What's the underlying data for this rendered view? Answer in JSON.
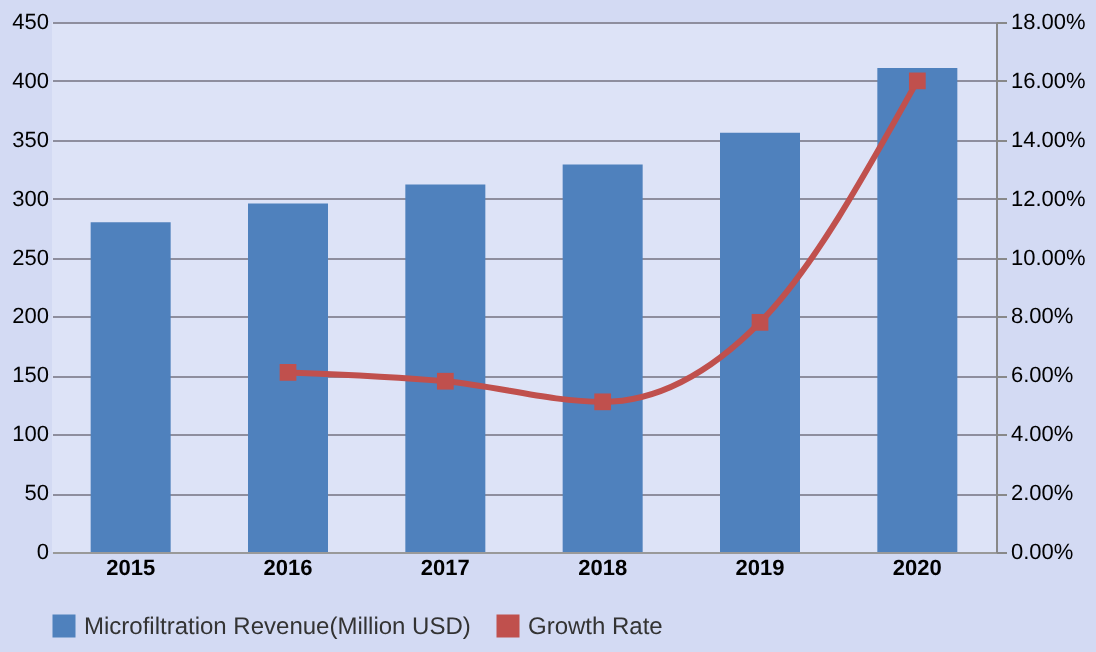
{
  "chart_data": {
    "type": "bar",
    "categories": [
      "2015",
      "2016",
      "2017",
      "2018",
      "2019",
      "2020"
    ],
    "series": [
      {
        "name": "Microfiltration Revenue(Million USD)",
        "color": "#4f81bd",
        "values": [
          280,
          296,
          312,
          329,
          356,
          411
        ]
      },
      {
        "name": "Growth Rate",
        "type": "line",
        "axis": "y2",
        "color": "#c0504d",
        "marker": "square",
        "values": [
          null,
          6.1,
          5.8,
          5.1,
          7.8,
          16.0
        ]
      }
    ],
    "ylim": [
      0,
      450
    ],
    "yticks": [
      0,
      50,
      100,
      150,
      200,
      250,
      300,
      350,
      400,
      450
    ],
    "y2lim": [
      0,
      18
    ],
    "y2ticks": [
      {
        "value": 0,
        "label": "0.00%"
      },
      {
        "value": 2,
        "label": "2.00%"
      },
      {
        "value": 4,
        "label": "4.00%"
      },
      {
        "value": 6,
        "label": "6.00%"
      },
      {
        "value": 8,
        "label": "8.00%"
      },
      {
        "value": 10,
        "label": "10.00%"
      },
      {
        "value": 12,
        "label": "12.00%"
      },
      {
        "value": 14,
        "label": "14.00%"
      },
      {
        "value": 16,
        "label": "16.00%"
      },
      {
        "value": 18,
        "label": "18.00%"
      }
    ],
    "grid": "y",
    "legend": "bottom"
  }
}
